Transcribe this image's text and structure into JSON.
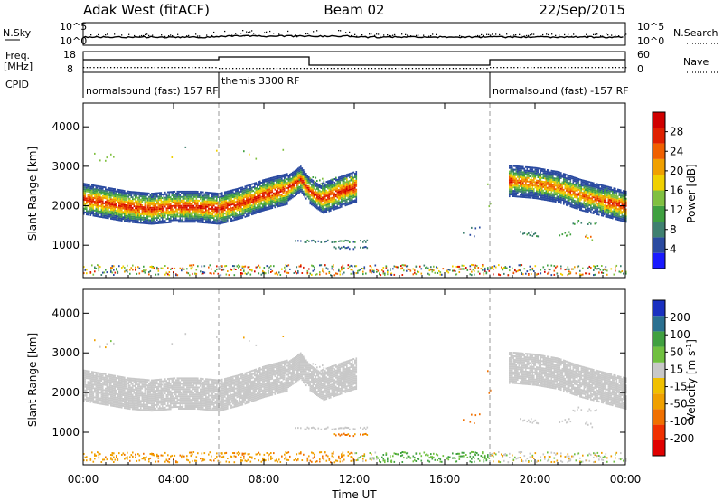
{
  "header": {
    "radar": "Adak West (fitACF)",
    "beam": "Beam 02",
    "date": "22/Sep/2015"
  },
  "summary": {
    "nsky_label": "N.Sky",
    "nsearch_label": "N.Search",
    "noise_ticks": [
      "10^5",
      "10^0"
    ],
    "freq_label": "Freq.",
    "freq_unit": "[MHz]",
    "freq_ticks": [
      "18",
      "8"
    ],
    "nave_label": "Nave",
    "nave_ticks": [
      "60",
      "0"
    ],
    "cpid_label": "CPID",
    "cpid_segments": [
      {
        "label": "normalsound (fast) 157 RF",
        "start_hour": 0
      },
      {
        "label": "themis 3300 RF",
        "start_hour": 6
      },
      {
        "label": "normalsound (fast) -157 RF",
        "start_hour": 18
      }
    ]
  },
  "colors": {
    "power_scale": [
      "#1a1aff",
      "#2a4aa0",
      "#3f8070",
      "#3fa040",
      "#80c040",
      "#f0d000",
      "#f0a000",
      "#f06000",
      "#e02000",
      "#d00000"
    ],
    "velocity_scale": [
      "#e00000",
      "#f03000",
      "#f07000",
      "#f0a000",
      "#f0c000",
      "#c8c8c8",
      "#70c040",
      "#40a040",
      "#2a7090",
      "#1a30c0"
    ]
  },
  "chart_data": [
    {
      "type": "heatmap",
      "panel": "power",
      "ylabel": "Slant Range [km]",
      "x_range_hours": [
        0,
        24
      ],
      "ylim": [
        180,
        4600
      ],
      "yticks": [
        "1000",
        "2000",
        "3000",
        "4000"
      ],
      "xticks": [
        "00:00",
        "04:00",
        "08:00",
        "12:00",
        "16:00",
        "20:00",
        "00:00"
      ],
      "colorbar": {
        "label": "Power [dB]",
        "ticks": [
          "4",
          "8",
          "12",
          "16",
          "20",
          "24",
          "28"
        ],
        "range": [
          0,
          30
        ]
      },
      "cpid_changes_hours": [
        6,
        18
      ],
      "main_band_km": [
        [
          0,
          2150
        ],
        [
          1,
          2050
        ],
        [
          2,
          1950
        ],
        [
          3,
          1900
        ],
        [
          4,
          1950
        ],
        [
          5,
          1950
        ],
        [
          6,
          1900
        ],
        [
          7,
          2050
        ],
        [
          8,
          2250
        ],
        [
          9,
          2400
        ],
        [
          9.6,
          2650
        ],
        [
          10,
          2350
        ],
        [
          10.5,
          2150
        ],
        [
          11.5,
          2350
        ],
        [
          12,
          2450
        ],
        [
          19,
          2600
        ],
        [
          20,
          2550
        ],
        [
          21,
          2450
        ],
        [
          22,
          2250
        ],
        [
          23,
          2100
        ],
        [
          24,
          1950
        ]
      ]
    },
    {
      "type": "heatmap",
      "panel": "velocity",
      "ylabel": "Slant Range [km]",
      "x_range_hours": [
        0,
        24
      ],
      "ylim": [
        180,
        4600
      ],
      "yticks": [
        "1000",
        "2000",
        "3000",
        "4000"
      ],
      "xticks": [
        "00:00",
        "04:00",
        "08:00",
        "12:00",
        "16:00",
        "20:00",
        "00:00"
      ],
      "xlabel": "Time UT",
      "colorbar": {
        "label": "Velocity [m s-1]",
        "ticks": [
          "-200",
          "-100",
          "-50",
          "-15",
          "15",
          "50",
          "100",
          "200"
        ],
        "range": [
          -250,
          250
        ]
      }
    }
  ]
}
